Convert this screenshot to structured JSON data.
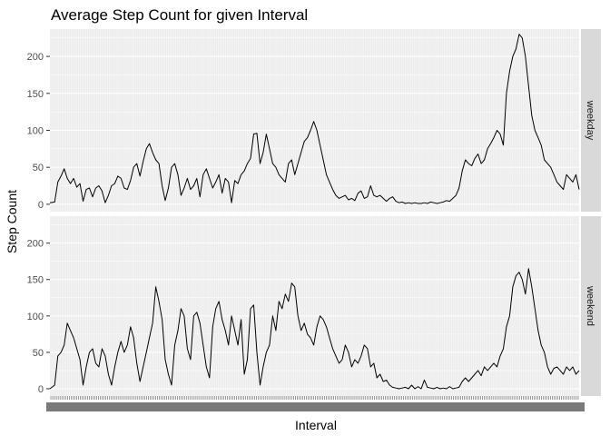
{
  "chart_data": {
    "type": "line",
    "title": "Average Step Count for given Interval",
    "xlabel": "Interval",
    "ylabel": "Step Count",
    "ylim": [
      -10,
      237
    ],
    "yticks": [
      0,
      50,
      100,
      150,
      200
    ],
    "grid": true,
    "x_axis": "categorical (288 five-minute interval labels, illegibly dense)",
    "x_count": 288,
    "facets": [
      "weekday",
      "weekend"
    ],
    "colors": {
      "panel_bg": "#ebebeb",
      "grid": "#ffffff",
      "line": "#000000",
      "strip_bg": "#d9d9d9"
    },
    "series": [
      {
        "name": "weekday",
        "points": [
          [
            0,
            2
          ],
          [
            3,
            3
          ],
          [
            5,
            30
          ],
          [
            7,
            38
          ],
          [
            9,
            48
          ],
          [
            11,
            35
          ],
          [
            13,
            28
          ],
          [
            15,
            35
          ],
          [
            17,
            23
          ],
          [
            19,
            28
          ],
          [
            21,
            4
          ],
          [
            23,
            20
          ],
          [
            25,
            22
          ],
          [
            27,
            10
          ],
          [
            29,
            22
          ],
          [
            31,
            25
          ],
          [
            33,
            18
          ],
          [
            35,
            2
          ],
          [
            37,
            12
          ],
          [
            39,
            25
          ],
          [
            41,
            28
          ],
          [
            43,
            38
          ],
          [
            45,
            35
          ],
          [
            47,
            22
          ],
          [
            49,
            20
          ],
          [
            51,
            32
          ],
          [
            53,
            50
          ],
          [
            55,
            55
          ],
          [
            57,
            38
          ],
          [
            59,
            58
          ],
          [
            61,
            75
          ],
          [
            63,
            82
          ],
          [
            65,
            70
          ],
          [
            67,
            60
          ],
          [
            69,
            55
          ],
          [
            71,
            25
          ],
          [
            73,
            5
          ],
          [
            75,
            22
          ],
          [
            77,
            50
          ],
          [
            79,
            55
          ],
          [
            81,
            40
          ],
          [
            83,
            12
          ],
          [
            85,
            22
          ],
          [
            87,
            35
          ],
          [
            89,
            20
          ],
          [
            91,
            25
          ],
          [
            93,
            35
          ],
          [
            95,
            10
          ],
          [
            97,
            40
          ],
          [
            99,
            48
          ],
          [
            101,
            35
          ],
          [
            103,
            22
          ],
          [
            105,
            30
          ],
          [
            107,
            40
          ],
          [
            109,
            15
          ],
          [
            111,
            35
          ],
          [
            113,
            30
          ],
          [
            115,
            2
          ],
          [
            117,
            32
          ],
          [
            119,
            28
          ],
          [
            121,
            40
          ],
          [
            123,
            45
          ],
          [
            125,
            55
          ],
          [
            127,
            62
          ],
          [
            129,
            95
          ],
          [
            131,
            96
          ],
          [
            133,
            55
          ],
          [
            135,
            70
          ],
          [
            137,
            95
          ],
          [
            139,
            75
          ],
          [
            141,
            55
          ],
          [
            143,
            50
          ],
          [
            145,
            40
          ],
          [
            147,
            35
          ],
          [
            149,
            30
          ],
          [
            151,
            55
          ],
          [
            153,
            60
          ],
          [
            155,
            40
          ],
          [
            157,
            55
          ],
          [
            159,
            70
          ],
          [
            161,
            85
          ],
          [
            163,
            90
          ],
          [
            165,
            100
          ],
          [
            167,
            112
          ],
          [
            169,
            100
          ],
          [
            171,
            80
          ],
          [
            173,
            60
          ],
          [
            175,
            40
          ],
          [
            177,
            30
          ],
          [
            179,
            20
          ],
          [
            181,
            12
          ],
          [
            183,
            8
          ],
          [
            185,
            10
          ],
          [
            187,
            12
          ],
          [
            189,
            6
          ],
          [
            191,
            8
          ],
          [
            193,
            5
          ],
          [
            195,
            15
          ],
          [
            197,
            18
          ],
          [
            199,
            8
          ],
          [
            201,
            10
          ],
          [
            203,
            25
          ],
          [
            205,
            12
          ],
          [
            207,
            10
          ],
          [
            209,
            12
          ],
          [
            211,
            8
          ],
          [
            213,
            4
          ],
          [
            215,
            8
          ],
          [
            217,
            10
          ],
          [
            219,
            4
          ],
          [
            221,
            2
          ],
          [
            223,
            3
          ],
          [
            225,
            1
          ],
          [
            227,
            2
          ],
          [
            229,
            1
          ],
          [
            231,
            2
          ],
          [
            233,
            1
          ],
          [
            235,
            1
          ],
          [
            237,
            2
          ],
          [
            239,
            1
          ],
          [
            241,
            3
          ],
          [
            243,
            2
          ],
          [
            245,
            1
          ],
          [
            247,
            2
          ],
          [
            249,
            3
          ],
          [
            251,
            5
          ],
          [
            253,
            4
          ],
          [
            255,
            8
          ],
          [
            257,
            12
          ],
          [
            259,
            22
          ],
          [
            261,
            45
          ],
          [
            263,
            60
          ],
          [
            265,
            55
          ],
          [
            267,
            52
          ],
          [
            269,
            62
          ],
          [
            271,
            68
          ],
          [
            273,
            55
          ],
          [
            275,
            60
          ],
          [
            277,
            75
          ],
          [
            279,
            82
          ],
          [
            281,
            90
          ],
          [
            283,
            100
          ],
          [
            285,
            95
          ],
          [
            287,
            80
          ],
          [
            289,
            150
          ],
          [
            291,
            180
          ],
          [
            293,
            200
          ],
          [
            295,
            210
          ],
          [
            297,
            230
          ],
          [
            299,
            225
          ],
          [
            301,
            200
          ],
          [
            303,
            160
          ],
          [
            305,
            120
          ],
          [
            307,
            100
          ],
          [
            309,
            90
          ],
          [
            311,
            80
          ],
          [
            313,
            60
          ],
          [
            315,
            55
          ],
          [
            317,
            50
          ],
          [
            319,
            40
          ],
          [
            321,
            30
          ],
          [
            323,
            25
          ],
          [
            325,
            20
          ],
          [
            327,
            40
          ],
          [
            329,
            35
          ],
          [
            331,
            30
          ],
          [
            333,
            40
          ],
          [
            335,
            20
          ]
        ]
      },
      {
        "name": "weekend",
        "points": [
          [
            0,
            0
          ],
          [
            3,
            5
          ],
          [
            5,
            45
          ],
          [
            7,
            50
          ],
          [
            9,
            60
          ],
          [
            11,
            90
          ],
          [
            13,
            80
          ],
          [
            15,
            70
          ],
          [
            17,
            55
          ],
          [
            19,
            40
          ],
          [
            21,
            5
          ],
          [
            23,
            30
          ],
          [
            25,
            50
          ],
          [
            27,
            55
          ],
          [
            29,
            35
          ],
          [
            31,
            30
          ],
          [
            33,
            55
          ],
          [
            35,
            45
          ],
          [
            37,
            20
          ],
          [
            39,
            5
          ],
          [
            41,
            30
          ],
          [
            43,
            50
          ],
          [
            45,
            65
          ],
          [
            47,
            50
          ],
          [
            49,
            60
          ],
          [
            51,
            85
          ],
          [
            53,
            70
          ],
          [
            55,
            35
          ],
          [
            57,
            10
          ],
          [
            59,
            30
          ],
          [
            61,
            50
          ],
          [
            63,
            70
          ],
          [
            65,
            90
          ],
          [
            67,
            140
          ],
          [
            69,
            120
          ],
          [
            71,
            95
          ],
          [
            73,
            40
          ],
          [
            75,
            20
          ],
          [
            77,
            5
          ],
          [
            79,
            60
          ],
          [
            81,
            80
          ],
          [
            83,
            110
          ],
          [
            85,
            100
          ],
          [
            87,
            55
          ],
          [
            89,
            40
          ],
          [
            91,
            100
          ],
          [
            93,
            105
          ],
          [
            95,
            90
          ],
          [
            97,
            60
          ],
          [
            99,
            30
          ],
          [
            101,
            15
          ],
          [
            103,
            85
          ],
          [
            105,
            110
          ],
          [
            107,
            120
          ],
          [
            109,
            95
          ],
          [
            111,
            80
          ],
          [
            113,
            60
          ],
          [
            115,
            100
          ],
          [
            117,
            80
          ],
          [
            119,
            60
          ],
          [
            121,
            95
          ],
          [
            123,
            20
          ],
          [
            125,
            40
          ],
          [
            127,
            110
          ],
          [
            129,
            115
          ],
          [
            131,
            50
          ],
          [
            133,
            5
          ],
          [
            135,
            30
          ],
          [
            137,
            50
          ],
          [
            139,
            60
          ],
          [
            141,
            100
          ],
          [
            143,
            80
          ],
          [
            145,
            120
          ],
          [
            147,
            110
          ],
          [
            149,
            130
          ],
          [
            151,
            120
          ],
          [
            153,
            145
          ],
          [
            155,
            140
          ],
          [
            157,
            100
          ],
          [
            159,
            80
          ],
          [
            161,
            90
          ],
          [
            163,
            75
          ],
          [
            165,
            70
          ],
          [
            167,
            60
          ],
          [
            169,
            85
          ],
          [
            171,
            100
          ],
          [
            173,
            95
          ],
          [
            175,
            85
          ],
          [
            177,
            70
          ],
          [
            179,
            55
          ],
          [
            181,
            45
          ],
          [
            183,
            35
          ],
          [
            185,
            40
          ],
          [
            187,
            60
          ],
          [
            189,
            50
          ],
          [
            191,
            30
          ],
          [
            193,
            40
          ],
          [
            195,
            35
          ],
          [
            197,
            45
          ],
          [
            199,
            60
          ],
          [
            201,
            55
          ],
          [
            203,
            30
          ],
          [
            205,
            35
          ],
          [
            207,
            15
          ],
          [
            209,
            20
          ],
          [
            211,
            10
          ],
          [
            213,
            12
          ],
          [
            215,
            5
          ],
          [
            217,
            2
          ],
          [
            219,
            1
          ],
          [
            221,
            0
          ],
          [
            223,
            1
          ],
          [
            225,
            2
          ],
          [
            227,
            0
          ],
          [
            229,
            5
          ],
          [
            231,
            0
          ],
          [
            233,
            3
          ],
          [
            235,
            0
          ],
          [
            237,
            12
          ],
          [
            239,
            2
          ],
          [
            241,
            1
          ],
          [
            243,
            0
          ],
          [
            245,
            2
          ],
          [
            247,
            0
          ],
          [
            249,
            1
          ],
          [
            251,
            0
          ],
          [
            253,
            3
          ],
          [
            255,
            0
          ],
          [
            257,
            1
          ],
          [
            259,
            2
          ],
          [
            261,
            10
          ],
          [
            263,
            15
          ],
          [
            265,
            10
          ],
          [
            267,
            15
          ],
          [
            269,
            20
          ],
          [
            271,
            25
          ],
          [
            273,
            18
          ],
          [
            275,
            30
          ],
          [
            277,
            25
          ],
          [
            279,
            30
          ],
          [
            281,
            35
          ],
          [
            283,
            30
          ],
          [
            285,
            45
          ],
          [
            287,
            55
          ],
          [
            289,
            85
          ],
          [
            291,
            100
          ],
          [
            293,
            140
          ],
          [
            295,
            155
          ],
          [
            297,
            160
          ],
          [
            299,
            150
          ],
          [
            301,
            130
          ],
          [
            303,
            165
          ],
          [
            305,
            140
          ],
          [
            307,
            110
          ],
          [
            309,
            80
          ],
          [
            311,
            60
          ],
          [
            313,
            50
          ],
          [
            315,
            30
          ],
          [
            317,
            20
          ],
          [
            319,
            28
          ],
          [
            321,
            30
          ],
          [
            323,
            25
          ],
          [
            325,
            20
          ],
          [
            327,
            30
          ],
          [
            329,
            25
          ],
          [
            331,
            30
          ],
          [
            333,
            20
          ],
          [
            335,
            25
          ]
        ]
      }
    ]
  }
}
